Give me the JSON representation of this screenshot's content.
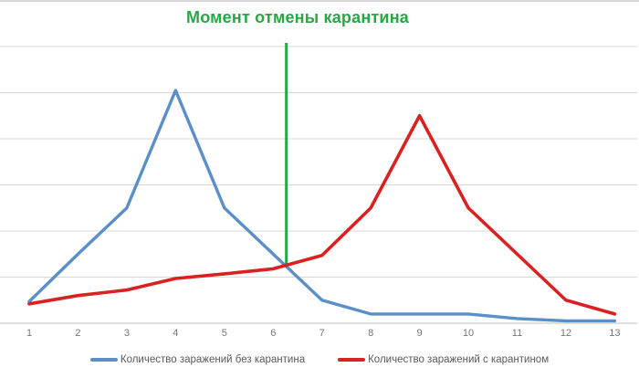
{
  "window": {
    "background": "#ffffff",
    "top_border_color": "#d8d8d8"
  },
  "title": {
    "text": "Момент отмены карантина",
    "color": "#28a745"
  },
  "legend": {
    "position": "bottom",
    "text_color": "#595959",
    "entries": [
      {
        "label": "Количество заражений без карантина",
        "color": "#5a8fc8"
      },
      {
        "label": "Количество заражений с карантином",
        "color": "#d92121"
      }
    ]
  },
  "chart_data": {
    "type": "line",
    "title": "Момент отмены карантина",
    "x": [
      1,
      2,
      3,
      4,
      5,
      6,
      7,
      8,
      9,
      10,
      11,
      12,
      13
    ],
    "x_tick_labels": [
      "1",
      "2",
      "3",
      "4",
      "5",
      "6",
      "7",
      "8",
      "9",
      "10",
      "11",
      "12",
      "13"
    ],
    "series": [
      {
        "name": "Количество заражений без карантина",
        "color": "#5a8fc8",
        "values": [
          0.47,
          1.5,
          2.5,
          5.05,
          2.5,
          1.5,
          0.5,
          0.2,
          0.2,
          0.2,
          0.1,
          0.05,
          0.05
        ]
      },
      {
        "name": "Количество заражений с карантином",
        "color": "#d92121",
        "values": [
          0.42,
          0.6,
          0.72,
          0.97,
          1.07,
          1.18,
          1.47,
          2.5,
          4.5,
          2.5,
          1.5,
          0.5,
          0.2
        ]
      }
    ],
    "annotation": {
      "label": "Момент отмены карантина",
      "x": 6.27,
      "y_from": 6.08,
      "y_to": 1.25,
      "color": "#28a745"
    },
    "ylim": [
      0,
      6
    ],
    "y_gridline_step": 1,
    "y_tick_labels_visible": false,
    "grid": "horizontal",
    "gridline_color": "#d9d9d9",
    "axis_line_color": "#bfbfbf",
    "x_tick_color": "#757575",
    "legend_position": "bottom"
  }
}
